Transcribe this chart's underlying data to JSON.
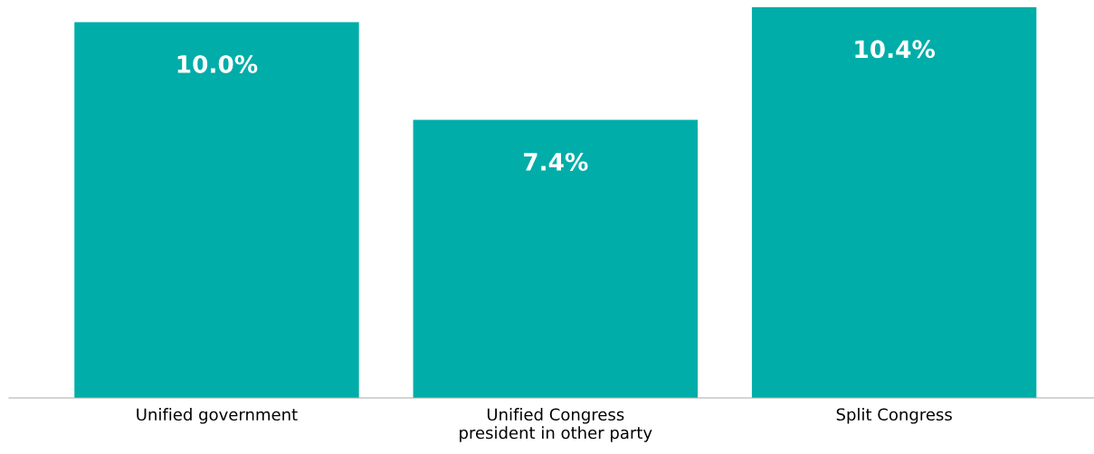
{
  "chart_data": {
    "type": "bar",
    "categories": [
      "Unified government",
      "Unified Congress\npresident in other party",
      "Split Congress"
    ],
    "values": [
      10.0,
      7.4,
      10.4
    ],
    "value_labels": [
      "10.0%",
      "7.4%",
      "10.4%"
    ],
    "color": "#00ada8",
    "grid": false,
    "legend": false
  }
}
